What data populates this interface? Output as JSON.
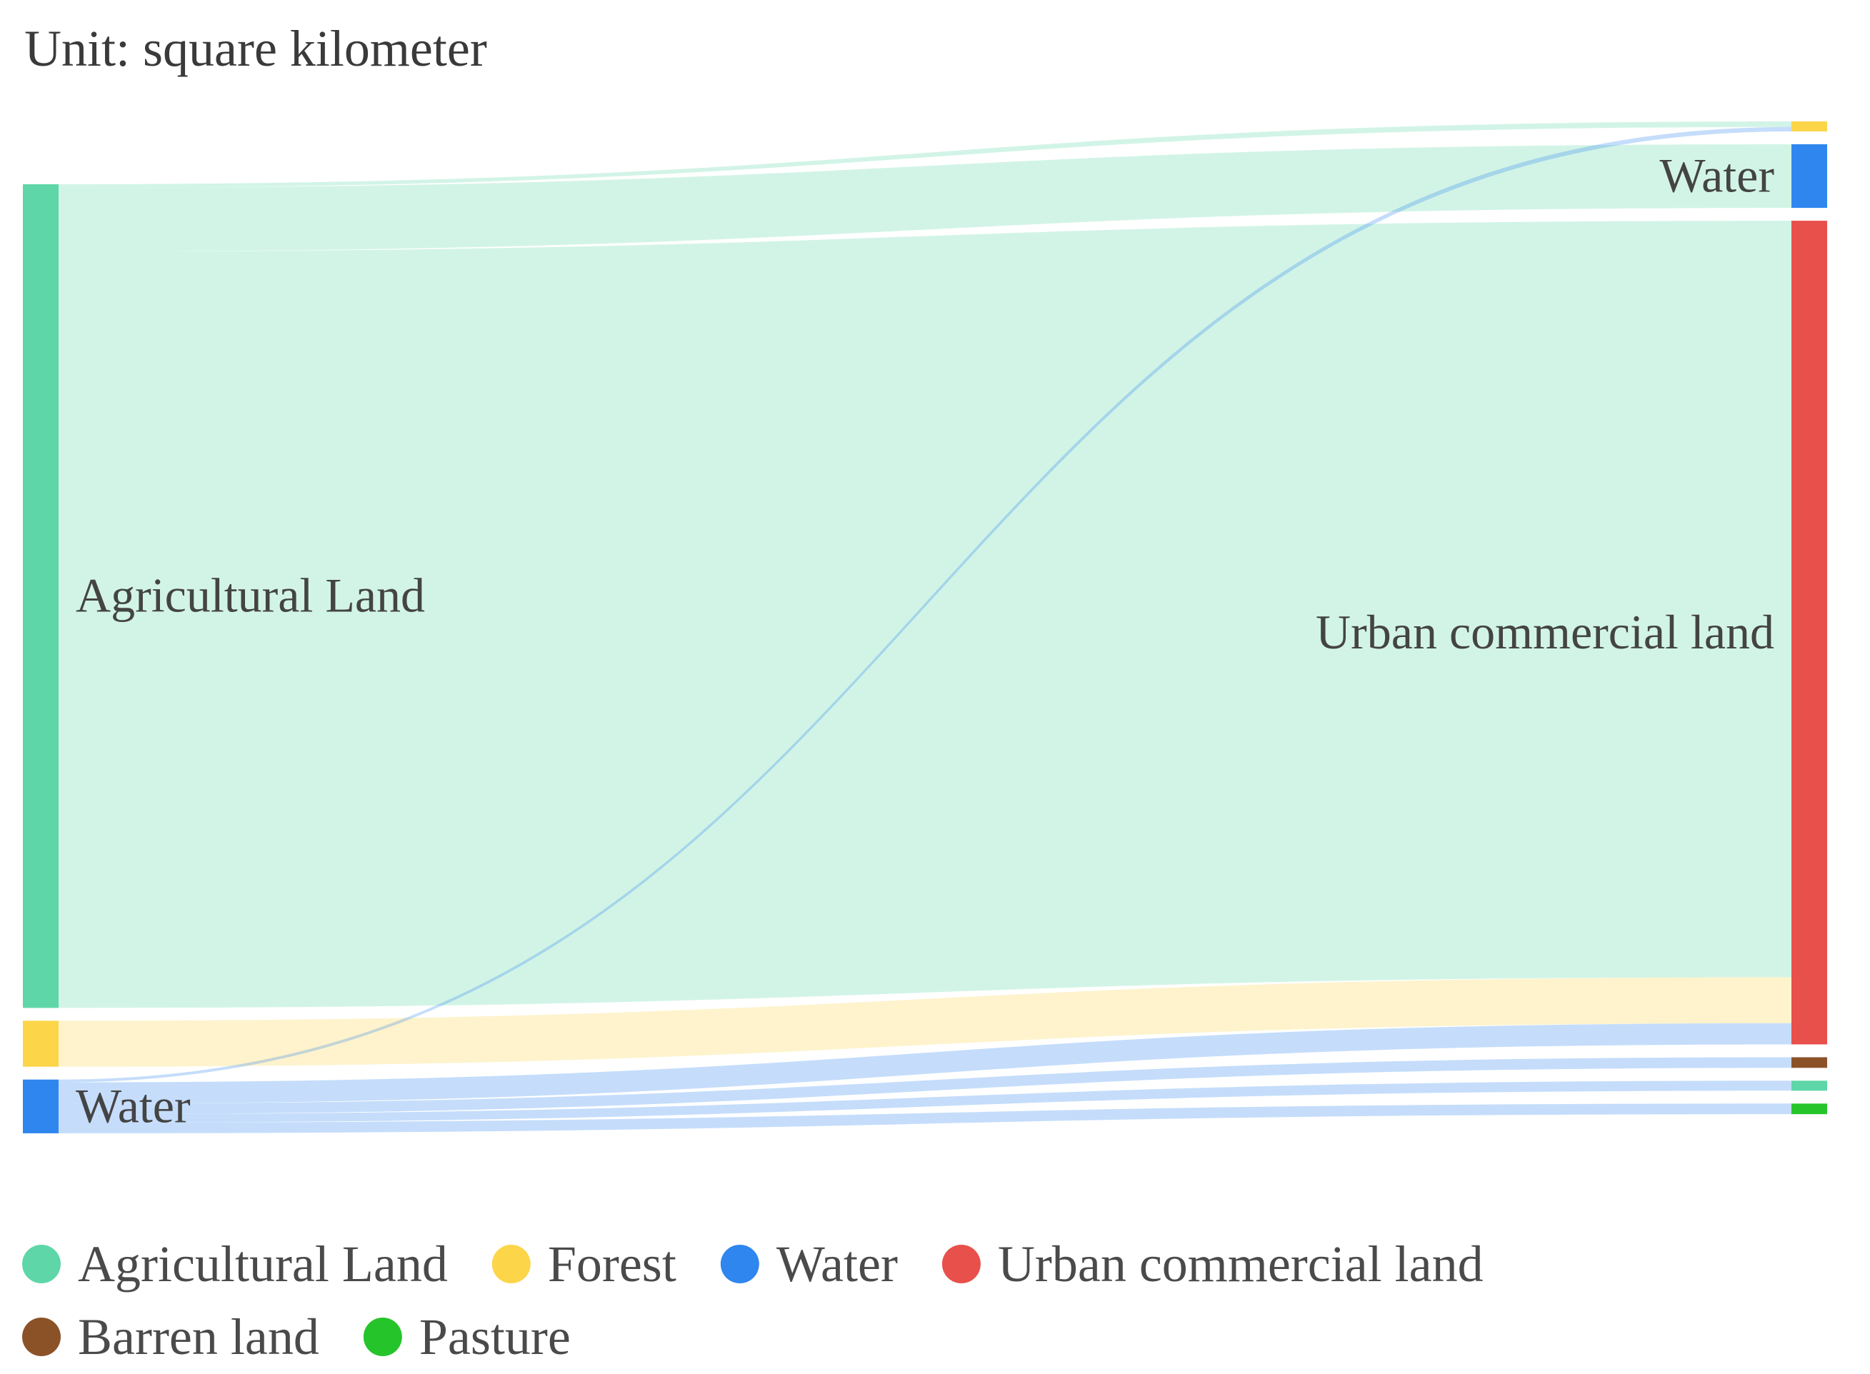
{
  "chart_data": {
    "type": "sankey",
    "unit_label": "Unit: square kilometer",
    "nodes": [
      {
        "id": "src_agri",
        "name": "Agricultural Land",
        "category": "Agricultural Land",
        "column": 0,
        "label": "Agricultural Land"
      },
      {
        "id": "src_forest",
        "name": "Forest",
        "category": "Forest",
        "column": 0,
        "label": ""
      },
      {
        "id": "src_water",
        "name": "Water",
        "category": "Water",
        "column": 0,
        "label": "Water"
      },
      {
        "id": "tgt_forest",
        "name": "Forest",
        "category": "Forest",
        "column": 1,
        "label": ""
      },
      {
        "id": "tgt_water",
        "name": "Water",
        "category": "Water",
        "column": 1,
        "label": "Water"
      },
      {
        "id": "tgt_urban",
        "name": "Urban commercial land",
        "category": "Urban commercial land",
        "column": 1,
        "label": "Urban commercial land"
      },
      {
        "id": "tgt_barren",
        "name": "Barren land",
        "category": "Barren land",
        "column": 1,
        "label": ""
      },
      {
        "id": "tgt_agri",
        "name": "Agricultural Land",
        "category": "Agricultural Land",
        "column": 1,
        "label": ""
      },
      {
        "id": "tgt_pasture",
        "name": "Pasture",
        "category": "Pasture",
        "column": 1,
        "label": ""
      }
    ],
    "links": [
      {
        "source": "src_agri",
        "target": "tgt_forest",
        "value": 0.5
      },
      {
        "source": "src_agri",
        "target": "tgt_water",
        "value": 9
      },
      {
        "source": "src_agri",
        "target": "tgt_urban",
        "value": 107
      },
      {
        "source": "src_forest",
        "target": "tgt_urban",
        "value": 6.5
      },
      {
        "source": "src_water",
        "target": "tgt_forest",
        "value": 0.4
      },
      {
        "source": "src_water",
        "target": "tgt_urban",
        "value": 3
      },
      {
        "source": "src_water",
        "target": "tgt_barren",
        "value": 1.5
      },
      {
        "source": "src_water",
        "target": "tgt_agri",
        "value": 1.2
      },
      {
        "source": "src_water",
        "target": "tgt_pasture",
        "value": 1.5
      }
    ],
    "legend": [
      {
        "name": "Agricultural Land",
        "color": "#5fd6a8"
      },
      {
        "name": "Forest",
        "color": "#fcd549"
      },
      {
        "name": "Water",
        "color": "#2f86ef"
      },
      {
        "name": "Urban commercial land",
        "color": "#e8504b"
      },
      {
        "name": "Barren land",
        "color": "#8b5228"
      },
      {
        "name": "Pasture",
        "color": "#26c42b"
      }
    ],
    "legend_position": "bottom-left"
  }
}
